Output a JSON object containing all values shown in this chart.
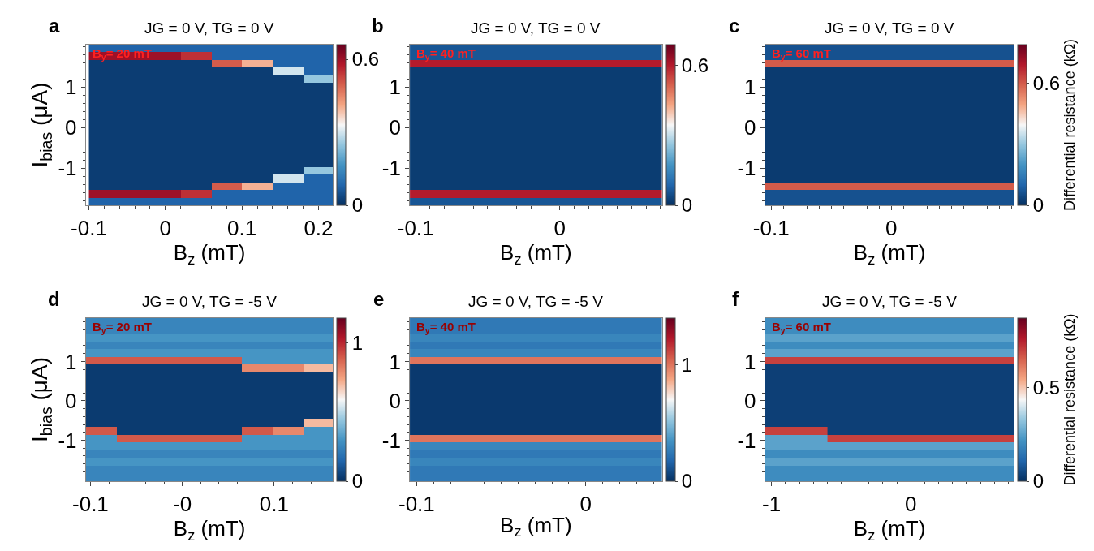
{
  "chart_data": [
    {
      "type": "heatmap",
      "title": "JG = 0 V, TG = 0 V",
      "xlabel": "B$_{z}$ (mT)",
      "ylabel": "I$_{bias}$ (μA)",
      "annotations": [
        "a",
        "B$_{y}$= 20 mT"
      ],
      "x": [
        -0.08,
        -0.04,
        0,
        0.04,
        0.08,
        0.12,
        0.16,
        0.2
      ],
      "cells": [
        [
          0.08,
          0.08,
          0.08,
          0.08,
          0.08,
          0.08,
          0.08,
          0.08
        ],
        [
          0.6,
          0.6,
          0.6,
          0.55,
          0.08,
          0.08,
          0.08,
          0.08
        ],
        [
          0.02,
          0.02,
          0.02,
          0.02,
          0.5,
          0.4,
          0.08,
          0.08
        ],
        [
          0.02,
          0.02,
          0.02,
          0.02,
          0.02,
          0.02,
          0.3,
          0.08
        ],
        [
          0.02,
          0.02,
          0.02,
          0.02,
          0.02,
          0.02,
          0.02,
          0.25
        ],
        [
          0.02,
          0.02,
          0.02,
          0.02,
          0.02,
          0.02,
          0.02,
          0.02
        ],
        [
          0.02,
          0.02,
          0.02,
          0.02,
          0.02,
          0.02,
          0.02,
          0.02
        ],
        [
          0.02,
          0.02,
          0.02,
          0.02,
          0.02,
          0.02,
          0.02,
          0.02
        ],
        [
          0.02,
          0.02,
          0.02,
          0.02,
          0.02,
          0.02,
          0.02,
          0.02
        ],
        [
          0.02,
          0.02,
          0.02,
          0.02,
          0.02,
          0.02,
          0.02,
          0.02
        ],
        [
          0.02,
          0.02,
          0.02,
          0.02,
          0.02,
          0.02,
          0.02,
          0.02
        ],
        [
          0.02,
          0.02,
          0.02,
          0.02,
          0.02,
          0.02,
          0.02,
          0.02
        ],
        [
          0.02,
          0.02,
          0.02,
          0.02,
          0.02,
          0.02,
          0.02,
          0.02
        ],
        [
          0.02,
          0.02,
          0.02,
          0.02,
          0.02,
          0.02,
          0.02,
          0.02
        ],
        [
          0.02,
          0.02,
          0.02,
          0.02,
          0.02,
          0.02,
          0.02,
          0.02
        ],
        [
          0.02,
          0.02,
          0.02,
          0.02,
          0.02,
          0.02,
          0.02,
          0.02
        ],
        [
          0.02,
          0.02,
          0.02,
          0.02,
          0.02,
          0.02,
          0.02,
          0.25
        ],
        [
          0.02,
          0.02,
          0.02,
          0.02,
          0.02,
          0.02,
          0.3,
          0.08
        ],
        [
          0.02,
          0.02,
          0.02,
          0.02,
          0.5,
          0.4,
          0.08,
          0.08
        ],
        [
          0.6,
          0.6,
          0.6,
          0.55,
          0.08,
          0.08,
          0.08,
          0.08
        ],
        [
          0.08,
          0.08,
          0.08,
          0.08,
          0.08,
          0.08,
          0.08,
          0.08
        ]
      ],
      "xlim": [
        -0.104,
        0.219
      ],
      "xticks": [
        -0.1,
        0,
        0.1,
        0.2
      ],
      "ylim": [
        -1.92,
        2.04
      ],
      "yticks": [
        -1,
        0,
        1
      ],
      "clim": [
        0,
        0.66
      ],
      "cticks": [
        0,
        0.6
      ]
    },
    {
      "type": "heatmap",
      "title": "JG = 0 V, TG = 0 V",
      "xlabel": "B$_{z}$ (mT)",
      "annotations": [
        "b",
        "B$_{y}$= 40 mT"
      ],
      "x": [
        -0.093,
        -0.071,
        -0.049,
        -0.027,
        -0.005,
        0.017,
        0.039,
        0.061
      ],
      "cells": [
        [
          0.06,
          0.06,
          0.06,
          0.06,
          0.06,
          0.06,
          0.06,
          0.06
        ],
        [
          0.06,
          0.06,
          0.06,
          0.06,
          0.06,
          0.06,
          0.06,
          0.06
        ],
        [
          0.6,
          0.6,
          0.6,
          0.6,
          0.6,
          0.6,
          0.6,
          0.6
        ],
        [
          0.02,
          0.02,
          0.02,
          0.02,
          0.02,
          0.02,
          0.02,
          0.02
        ],
        [
          0.02,
          0.02,
          0.02,
          0.02,
          0.02,
          0.02,
          0.02,
          0.02
        ],
        [
          0.02,
          0.02,
          0.02,
          0.02,
          0.02,
          0.02,
          0.02,
          0.02
        ],
        [
          0.02,
          0.02,
          0.02,
          0.02,
          0.02,
          0.02,
          0.02,
          0.02
        ],
        [
          0.02,
          0.02,
          0.02,
          0.02,
          0.02,
          0.02,
          0.02,
          0.02
        ],
        [
          0.02,
          0.02,
          0.02,
          0.02,
          0.02,
          0.02,
          0.02,
          0.02
        ],
        [
          0.02,
          0.02,
          0.02,
          0.02,
          0.02,
          0.02,
          0.02,
          0.02
        ],
        [
          0.02,
          0.02,
          0.02,
          0.02,
          0.02,
          0.02,
          0.02,
          0.02
        ],
        [
          0.02,
          0.02,
          0.02,
          0.02,
          0.02,
          0.02,
          0.02,
          0.02
        ],
        [
          0.02,
          0.02,
          0.02,
          0.02,
          0.02,
          0.02,
          0.02,
          0.02
        ],
        [
          0.02,
          0.02,
          0.02,
          0.02,
          0.02,
          0.02,
          0.02,
          0.02
        ],
        [
          0.02,
          0.02,
          0.02,
          0.02,
          0.02,
          0.02,
          0.02,
          0.02
        ],
        [
          0.02,
          0.02,
          0.02,
          0.02,
          0.02,
          0.02,
          0.02,
          0.02
        ],
        [
          0.02,
          0.02,
          0.02,
          0.02,
          0.02,
          0.02,
          0.02,
          0.02
        ],
        [
          0.02,
          0.02,
          0.02,
          0.02,
          0.02,
          0.02,
          0.02,
          0.02
        ],
        [
          0.02,
          0.02,
          0.02,
          0.02,
          0.02,
          0.02,
          0.02,
          0.02
        ],
        [
          0.6,
          0.6,
          0.6,
          0.6,
          0.6,
          0.6,
          0.6,
          0.6
        ],
        [
          0.06,
          0.06,
          0.06,
          0.06,
          0.06,
          0.06,
          0.06,
          0.06
        ]
      ],
      "xlim": [
        -0.104,
        0.071
      ],
      "xticks": [
        -0.1,
        0
      ],
      "ylim": [
        -1.92,
        2.04
      ],
      "yticks": [
        -1,
        0,
        1
      ],
      "clim": [
        0,
        0.69
      ],
      "cticks": [
        0,
        0.6
      ]
    },
    {
      "type": "heatmap",
      "title": "JG = 0 V, TG = 0 V",
      "xlabel": "B$_{z}$ (mT)",
      "clabel": "Differential resistance (kΩ)",
      "annotations": [
        "c",
        "B$_{y}$= 60 mT"
      ],
      "x": [
        -0.092,
        -0.066,
        -0.04,
        -0.014,
        0.012,
        0.038,
        0.064,
        0.09
      ],
      "cells": [
        [
          0.06,
          0.06,
          0.06,
          0.06,
          0.06,
          0.06,
          0.06,
          0.06
        ],
        [
          0.06,
          0.06,
          0.06,
          0.06,
          0.06,
          0.06,
          0.06,
          0.06
        ],
        [
          0.6,
          0.6,
          0.6,
          0.6,
          0.6,
          0.6,
          0.6,
          0.6
        ],
        [
          0.02,
          0.02,
          0.02,
          0.02,
          0.02,
          0.02,
          0.02,
          0.02
        ],
        [
          0.02,
          0.02,
          0.02,
          0.02,
          0.02,
          0.02,
          0.02,
          0.02
        ],
        [
          0.02,
          0.02,
          0.02,
          0.02,
          0.02,
          0.02,
          0.02,
          0.02
        ],
        [
          0.02,
          0.02,
          0.02,
          0.02,
          0.02,
          0.02,
          0.02,
          0.02
        ],
        [
          0.02,
          0.02,
          0.02,
          0.02,
          0.02,
          0.02,
          0.02,
          0.02
        ],
        [
          0.02,
          0.02,
          0.02,
          0.02,
          0.02,
          0.02,
          0.02,
          0.02
        ],
        [
          0.02,
          0.02,
          0.02,
          0.02,
          0.02,
          0.02,
          0.02,
          0.02
        ],
        [
          0.02,
          0.02,
          0.02,
          0.02,
          0.02,
          0.02,
          0.02,
          0.02
        ],
        [
          0.02,
          0.02,
          0.02,
          0.02,
          0.02,
          0.02,
          0.02,
          0.02
        ],
        [
          0.02,
          0.02,
          0.02,
          0.02,
          0.02,
          0.02,
          0.02,
          0.02
        ],
        [
          0.02,
          0.02,
          0.02,
          0.02,
          0.02,
          0.02,
          0.02,
          0.02
        ],
        [
          0.02,
          0.02,
          0.02,
          0.02,
          0.02,
          0.02,
          0.02,
          0.02
        ],
        [
          0.02,
          0.02,
          0.02,
          0.02,
          0.02,
          0.02,
          0.02,
          0.02
        ],
        [
          0.02,
          0.02,
          0.02,
          0.02,
          0.02,
          0.02,
          0.02,
          0.02
        ],
        [
          0.02,
          0.02,
          0.02,
          0.02,
          0.02,
          0.02,
          0.02,
          0.02
        ],
        [
          0.6,
          0.6,
          0.6,
          0.6,
          0.6,
          0.6,
          0.6,
          0.6
        ],
        [
          0.06,
          0.06,
          0.06,
          0.06,
          0.06,
          0.06,
          0.06,
          0.06
        ],
        [
          0.06,
          0.06,
          0.06,
          0.06,
          0.06,
          0.06,
          0.06,
          0.06
        ]
      ],
      "xlim": [
        -0.105,
        0.102
      ],
      "xticks": [
        -0.1,
        0
      ],
      "ylim": [
        -1.92,
        2.04
      ],
      "yticks": [
        -1,
        0,
        1
      ],
      "clim": [
        0,
        0.79
      ],
      "cticks": [
        0,
        0.6
      ]
    },
    {
      "type": "heatmap",
      "title": "JG = 0 V, TG = -5 V",
      "xlabel": "B$_{z}$ (mT)",
      "ylabel": "I$_{bias}$ (μA)",
      "annotations": [
        "d",
        "B$_{y}$= 20 mT"
      ],
      "x": [
        -0.088,
        -0.054,
        -0.02,
        0.014,
        0.048,
        0.082,
        0.116,
        0.15
      ],
      "cells": [
        [
          0.25,
          0.25,
          0.25,
          0.25,
          0.25,
          0.25,
          0.25,
          0.25
        ],
        [
          0.25,
          0.25,
          0.25,
          0.25,
          0.25,
          0.25,
          0.25,
          0.25
        ],
        [
          0.3,
          0.3,
          0.3,
          0.3,
          0.3,
          0.3,
          0.3,
          0.3
        ],
        [
          0.25,
          0.25,
          0.25,
          0.25,
          0.25,
          0.25,
          0.25,
          0.25
        ],
        [
          0.3,
          0.3,
          0.3,
          0.3,
          0.3,
          0.3,
          0.3,
          0.3
        ],
        [
          0.9,
          0.9,
          0.9,
          0.9,
          0.9,
          0.3,
          0.3,
          0.3
        ],
        [
          0.03,
          0.03,
          0.03,
          0.03,
          0.03,
          0.8,
          0.8,
          0.7
        ],
        [
          0.03,
          0.03,
          0.03,
          0.03,
          0.03,
          0.03,
          0.03,
          0.03
        ],
        [
          0.03,
          0.03,
          0.03,
          0.03,
          0.03,
          0.03,
          0.03,
          0.03
        ],
        [
          0.03,
          0.03,
          0.03,
          0.03,
          0.03,
          0.03,
          0.03,
          0.03
        ],
        [
          0.03,
          0.03,
          0.03,
          0.03,
          0.03,
          0.03,
          0.03,
          0.03
        ],
        [
          0.03,
          0.03,
          0.03,
          0.03,
          0.03,
          0.03,
          0.03,
          0.03
        ],
        [
          0.03,
          0.03,
          0.03,
          0.03,
          0.03,
          0.03,
          0.03,
          0.03
        ],
        [
          0.03,
          0.03,
          0.03,
          0.03,
          0.03,
          0.03,
          0.03,
          0.7
        ],
        [
          0.9,
          0.03,
          0.03,
          0.03,
          0.03,
          0.9,
          0.8,
          0.3
        ],
        [
          0.3,
          0.9,
          0.9,
          0.9,
          0.9,
          0.3,
          0.3,
          0.3
        ],
        [
          0.3,
          0.3,
          0.3,
          0.3,
          0.3,
          0.3,
          0.3,
          0.3
        ],
        [
          0.25,
          0.25,
          0.25,
          0.25,
          0.25,
          0.25,
          0.25,
          0.25
        ],
        [
          0.3,
          0.3,
          0.3,
          0.3,
          0.3,
          0.3,
          0.3,
          0.3
        ],
        [
          0.25,
          0.25,
          0.25,
          0.25,
          0.25,
          0.25,
          0.25,
          0.25
        ],
        [
          0.25,
          0.25,
          0.25,
          0.25,
          0.25,
          0.25,
          0.25,
          0.25
        ]
      ],
      "xlim": [
        -0.105,
        0.164
      ],
      "xticks": [
        -0.1,
        {
          "value": 0,
          "label": "-0"
        },
        0.1
      ],
      "ylim": [
        -2.04,
        2.1
      ],
      "yticks": [
        -1,
        0,
        1
      ],
      "clim": [
        0,
        1.18
      ],
      "cticks": [
        0,
        1
      ]
    },
    {
      "type": "heatmap",
      "title": "JG = 0 V, TG = -5 V",
      "xlabel": "B$_{z}$ (mT)",
      "annotations": [
        "e",
        "B$_{y}$= 40 mT"
      ],
      "x": [
        -0.095,
        -0.076,
        -0.057,
        -0.038,
        -0.019,
        0,
        0.019,
        0.038
      ],
      "cells": [
        [
          0.25,
          0.25,
          0.25,
          0.25,
          0.25,
          0.25,
          0.25,
          0.25
        ],
        [
          0.25,
          0.25,
          0.25,
          0.25,
          0.25,
          0.25,
          0.25,
          0.25
        ],
        [
          0.3,
          0.3,
          0.3,
          0.3,
          0.3,
          0.3,
          0.3,
          0.3
        ],
        [
          0.25,
          0.25,
          0.25,
          0.25,
          0.25,
          0.25,
          0.25,
          0.25
        ],
        [
          0.3,
          0.3,
          0.3,
          0.3,
          0.3,
          0.3,
          0.3,
          0.3
        ],
        [
          1.0,
          1.0,
          1.0,
          1.0,
          1.0,
          1.0,
          1.0,
          1.0
        ],
        [
          0.03,
          0.03,
          0.03,
          0.03,
          0.03,
          0.03,
          0.03,
          0.03
        ],
        [
          0.03,
          0.03,
          0.03,
          0.03,
          0.03,
          0.03,
          0.03,
          0.03
        ],
        [
          0.03,
          0.03,
          0.03,
          0.03,
          0.03,
          0.03,
          0.03,
          0.03
        ],
        [
          0.03,
          0.03,
          0.03,
          0.03,
          0.03,
          0.03,
          0.03,
          0.03
        ],
        [
          0.03,
          0.03,
          0.03,
          0.03,
          0.03,
          0.03,
          0.03,
          0.03
        ],
        [
          0.03,
          0.03,
          0.03,
          0.03,
          0.03,
          0.03,
          0.03,
          0.03
        ],
        [
          0.03,
          0.03,
          0.03,
          0.03,
          0.03,
          0.03,
          0.03,
          0.03
        ],
        [
          0.03,
          0.03,
          0.03,
          0.03,
          0.03,
          0.03,
          0.03,
          0.03
        ],
        [
          0.03,
          0.03,
          0.03,
          0.03,
          0.03,
          0.03,
          0.03,
          0.03
        ],
        [
          1.0,
          1.0,
          1.0,
          1.0,
          1.0,
          1.0,
          1.0,
          1.0
        ],
        [
          0.3,
          0.3,
          0.3,
          0.3,
          0.3,
          0.3,
          0.3,
          0.3
        ],
        [
          0.25,
          0.25,
          0.25,
          0.25,
          0.25,
          0.25,
          0.25,
          0.25
        ],
        [
          0.3,
          0.3,
          0.3,
          0.3,
          0.3,
          0.3,
          0.3,
          0.3
        ],
        [
          0.25,
          0.25,
          0.25,
          0.25,
          0.25,
          0.25,
          0.25,
          0.25
        ],
        [
          0.25,
          0.25,
          0.25,
          0.25,
          0.25,
          0.25,
          0.25,
          0.25
        ]
      ],
      "xlim": [
        -0.104,
        0.045
      ],
      "xticks": [
        -0.1,
        0
      ],
      "ylim": [
        -2.04,
        2.1
      ],
      "yticks": [
        -1,
        0,
        1
      ],
      "clim": [
        0,
        1.4
      ],
      "cticks": [
        0,
        1
      ]
    },
    {
      "type": "heatmap",
      "title": "JG = 0 V, TG = -5 V",
      "xlabel": "B$_{z}$ (mT)",
      "clabel": "Differential resistance (kΩ)",
      "annotations": [
        "f",
        "B$_{y}$= 60 mT"
      ],
      "x": [
        -0.935,
        -0.71,
        -0.49,
        -0.265,
        -0.04,
        0.185,
        0.405,
        0.63
      ],
      "cells": [
        [
          0.2,
          0.2,
          0.2,
          0.2,
          0.2,
          0.2,
          0.2,
          0.2
        ],
        [
          0.2,
          0.2,
          0.2,
          0.2,
          0.2,
          0.2,
          0.2,
          0.2
        ],
        [
          0.25,
          0.25,
          0.25,
          0.25,
          0.25,
          0.25,
          0.25,
          0.25
        ],
        [
          0.2,
          0.2,
          0.2,
          0.2,
          0.2,
          0.2,
          0.2,
          0.2
        ],
        [
          0.25,
          0.25,
          0.25,
          0.25,
          0.25,
          0.25,
          0.25,
          0.25
        ],
        [
          0.7,
          0.7,
          0.7,
          0.7,
          0.7,
          0.7,
          0.7,
          0.7
        ],
        [
          0.03,
          0.03,
          0.03,
          0.03,
          0.03,
          0.03,
          0.03,
          0.03
        ],
        [
          0.03,
          0.03,
          0.03,
          0.03,
          0.03,
          0.03,
          0.03,
          0.03
        ],
        [
          0.03,
          0.03,
          0.03,
          0.03,
          0.03,
          0.03,
          0.03,
          0.03
        ],
        [
          0.03,
          0.03,
          0.03,
          0.03,
          0.03,
          0.03,
          0.03,
          0.03
        ],
        [
          0.03,
          0.03,
          0.03,
          0.03,
          0.03,
          0.03,
          0.03,
          0.03
        ],
        [
          0.03,
          0.03,
          0.03,
          0.03,
          0.03,
          0.03,
          0.03,
          0.03
        ],
        [
          0.03,
          0.03,
          0.03,
          0.03,
          0.03,
          0.03,
          0.03,
          0.03
        ],
        [
          0.03,
          0.03,
          0.03,
          0.03,
          0.03,
          0.03,
          0.03,
          0.03
        ],
        [
          0.7,
          0.7,
          0.03,
          0.03,
          0.03,
          0.03,
          0.03,
          0.03
        ],
        [
          0.25,
          0.25,
          0.7,
          0.7,
          0.7,
          0.7,
          0.7,
          0.7
        ],
        [
          0.25,
          0.25,
          0.25,
          0.25,
          0.25,
          0.25,
          0.25,
          0.25
        ],
        [
          0.2,
          0.2,
          0.2,
          0.2,
          0.2,
          0.2,
          0.2,
          0.2
        ],
        [
          0.25,
          0.25,
          0.25,
          0.25,
          0.25,
          0.25,
          0.25,
          0.25
        ],
        [
          0.2,
          0.2,
          0.2,
          0.2,
          0.2,
          0.2,
          0.2,
          0.2
        ],
        [
          0.2,
          0.2,
          0.2,
          0.2,
          0.2,
          0.2,
          0.2,
          0.2
        ]
      ],
      "xlim": [
        -1.046,
        0.741
      ],
      "xticks": [
        -1,
        0
      ],
      "ylim": [
        -2.04,
        2.1
      ],
      "yticks": [
        -1,
        0,
        1
      ],
      "clim": [
        0,
        0.87
      ],
      "cticks": [
        0,
        0.5
      ]
    }
  ]
}
